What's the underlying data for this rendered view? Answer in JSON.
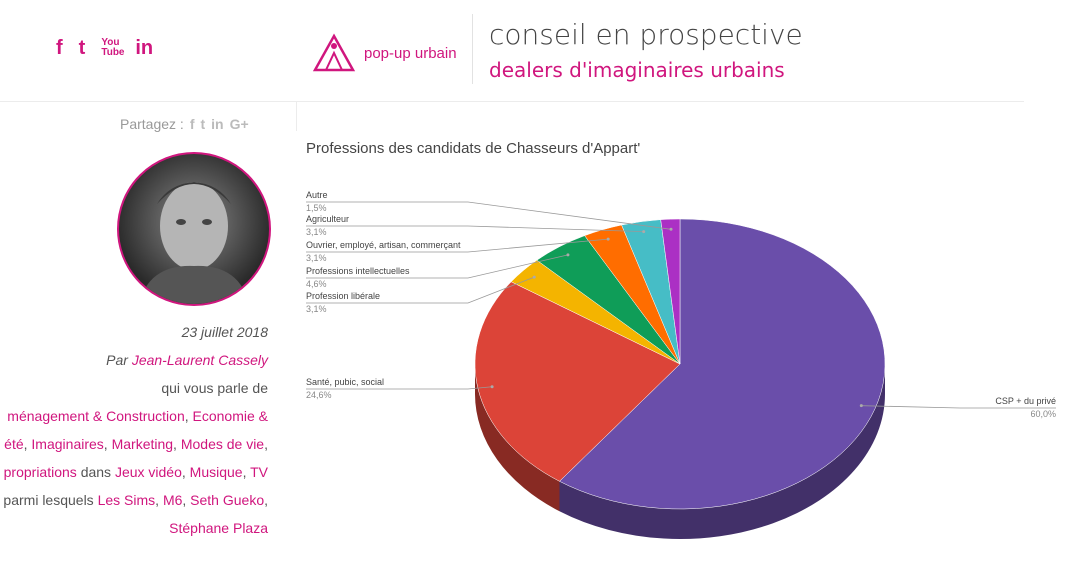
{
  "social": [
    "f",
    "t",
    "YouTube",
    "in"
  ],
  "brand": {
    "name": "pop-up urbain",
    "tagline1": "conseil en prospective",
    "tagline2": "dealers d'imaginaires urbains"
  },
  "share": {
    "label": "Partagez :",
    "icons": [
      "f",
      "t",
      "in",
      "G+"
    ]
  },
  "article": {
    "date": "23 juillet 2018",
    "by_prefix": "Par ",
    "author": "Jean-Laurent Cassely",
    "talks": "qui vous parle de",
    "topics_line1": [
      "ménagement & Construction",
      "Economie &"
    ],
    "topics_line2": [
      "été",
      "Imaginaires",
      "Marketing",
      "Modes de vie"
    ],
    "topics_line3": [
      "propriations",
      "Jeux vidéo",
      "Musique",
      "TV"
    ],
    "dans": "dans",
    "parmi": "parmi lesquels",
    "tags_line": [
      "Les Sims",
      "M6",
      "Seth Gueko"
    ],
    "tags_line2": [
      "Stéphane Plaza"
    ]
  },
  "chart_data": {
    "type": "pie",
    "title": "Professions des candidats de Chasseurs d'Appart'",
    "slices": [
      {
        "label": "CSP + du privé",
        "pct": "60,0%",
        "value": 60.0,
        "color": "#6a4eaa"
      },
      {
        "label": "Santé, pubic, social",
        "pct": "24,6%",
        "value": 24.6,
        "color": "#dc4438"
      },
      {
        "label": "Profession libérale",
        "pct": "3,1%",
        "value": 3.1,
        "color": "#f4b400"
      },
      {
        "label": "Professions intellectuelles",
        "pct": "4,6%",
        "value": 4.6,
        "color": "#0f9d58"
      },
      {
        "label": "Ouvrier, employé, artisan, commerçant",
        "pct": "3,1%",
        "value": 3.1,
        "color": "#ff6d00"
      },
      {
        "label": "Agriculteur",
        "pct": "3,1%",
        "value": 3.1,
        "color": "#46bdc6"
      },
      {
        "label": "Autre",
        "pct": "1,5%",
        "value": 1.5,
        "color": "#ab30c4"
      }
    ]
  }
}
